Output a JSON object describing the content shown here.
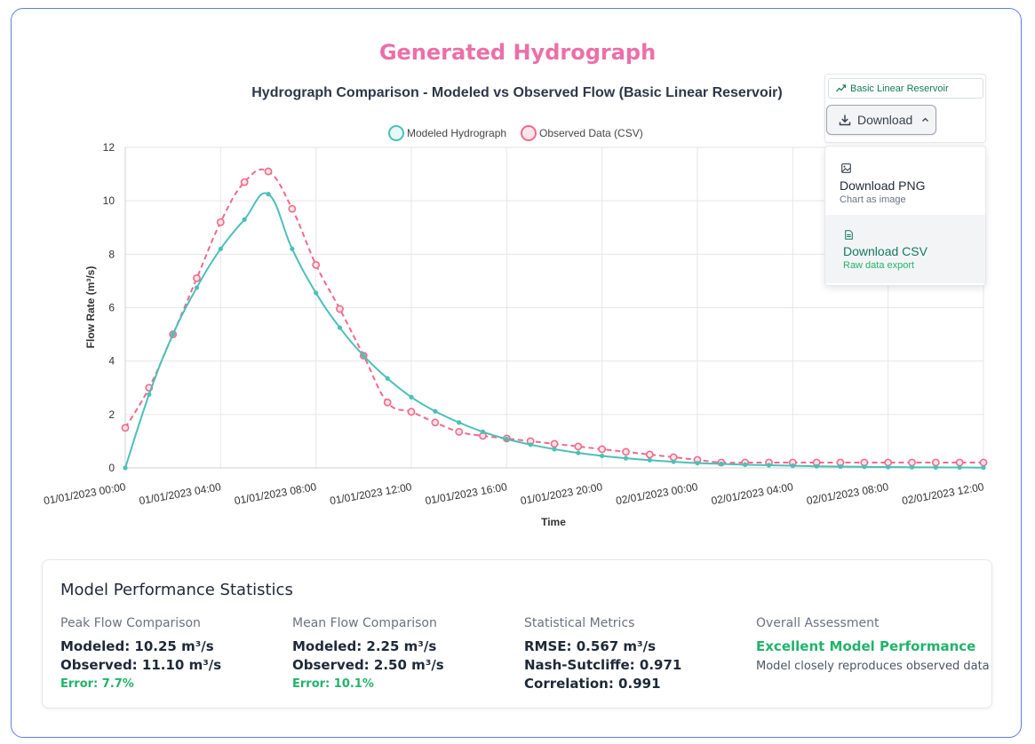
{
  "page_title": "Generated Hydrograph",
  "download_widget": {
    "model_badge": "Basic Linear Reservoir",
    "button_label": "Download",
    "menu": [
      {
        "label": "Download PNG",
        "sub": "Chart as image"
      },
      {
        "label": "Download CSV",
        "sub": "Raw data export"
      }
    ]
  },
  "chart_data": {
    "type": "line",
    "title": "Hydrograph Comparison - Modeled vs Observed Flow (Basic Linear Reservoir)",
    "xlabel": "Time",
    "ylabel": "Flow Rate (m³/s)",
    "ylim": [
      0,
      12
    ],
    "yticks": [
      0,
      2,
      4,
      6,
      8,
      10,
      12
    ],
    "x_hours": [
      0,
      1,
      2,
      3,
      4,
      5,
      6,
      7,
      8,
      9,
      10,
      11,
      12,
      13,
      14,
      15,
      16,
      17,
      18,
      19,
      20,
      21,
      22,
      23,
      24,
      25,
      26,
      27,
      28,
      29,
      30,
      31,
      32,
      33,
      34,
      35,
      36
    ],
    "xtick_labels": [
      "01/01/2023 00:00",
      "01/01/2023 04:00",
      "01/01/2023 08:00",
      "01/01/2023 12:00",
      "01/01/2023 16:00",
      "01/01/2023 20:00",
      "02/01/2023 00:00",
      "02/01/2023 04:00",
      "02/01/2023 08:00",
      "02/01/2023 12:00"
    ],
    "grid": true,
    "legend_position": "top-center",
    "series": [
      {
        "name": "Modeled Hydrograph",
        "color": "#4bc0b8",
        "style": "solid",
        "values": [
          0,
          2.75,
          5.0,
          6.75,
          8.2,
          9.3,
          10.25,
          8.2,
          6.55,
          5.25,
          4.2,
          3.35,
          2.65,
          2.12,
          1.7,
          1.35,
          1.08,
          0.87,
          0.7,
          0.56,
          0.45,
          0.36,
          0.29,
          0.23,
          0.18,
          0.15,
          0.12,
          0.1,
          0.08,
          0.06,
          0.05,
          0.04,
          0.03,
          0.025,
          0.02,
          0.015,
          0.01
        ]
      },
      {
        "name": "Observed Data (CSV)",
        "color": "#f06a8a",
        "style": "dashed",
        "values": [
          1.5,
          3.0,
          5.0,
          7.1,
          9.2,
          10.7,
          11.1,
          9.7,
          7.6,
          5.95,
          4.2,
          2.45,
          2.1,
          1.7,
          1.35,
          1.2,
          1.1,
          1.0,
          0.9,
          0.8,
          0.7,
          0.6,
          0.5,
          0.4,
          0.3,
          0.2,
          0.2,
          0.2,
          0.2,
          0.2,
          0.2,
          0.2,
          0.2,
          0.2,
          0.2,
          0.2,
          0.2
        ]
      }
    ]
  },
  "stats": {
    "title": "Model Performance Statistics",
    "peak": {
      "head": "Peak Flow Comparison",
      "modeled": "Modeled: 10.25 m³/s",
      "observed": "Observed: 11.10 m³/s",
      "error": "Error: 7.7%"
    },
    "mean": {
      "head": "Mean Flow Comparison",
      "modeled": "Modeled: 2.25 m³/s",
      "observed": "Observed: 2.50 m³/s",
      "error": "Error: 10.1%"
    },
    "metrics": {
      "head": "Statistical Metrics",
      "rmse": "RMSE: 0.567 m³/s",
      "nse": "Nash-Sutcliffe: 0.971",
      "corr": "Correlation: 0.991"
    },
    "overall": {
      "head": "Overall Assessment",
      "verdict": "Excellent Model Performance",
      "note": "Model closely reproduces observed data"
    }
  }
}
